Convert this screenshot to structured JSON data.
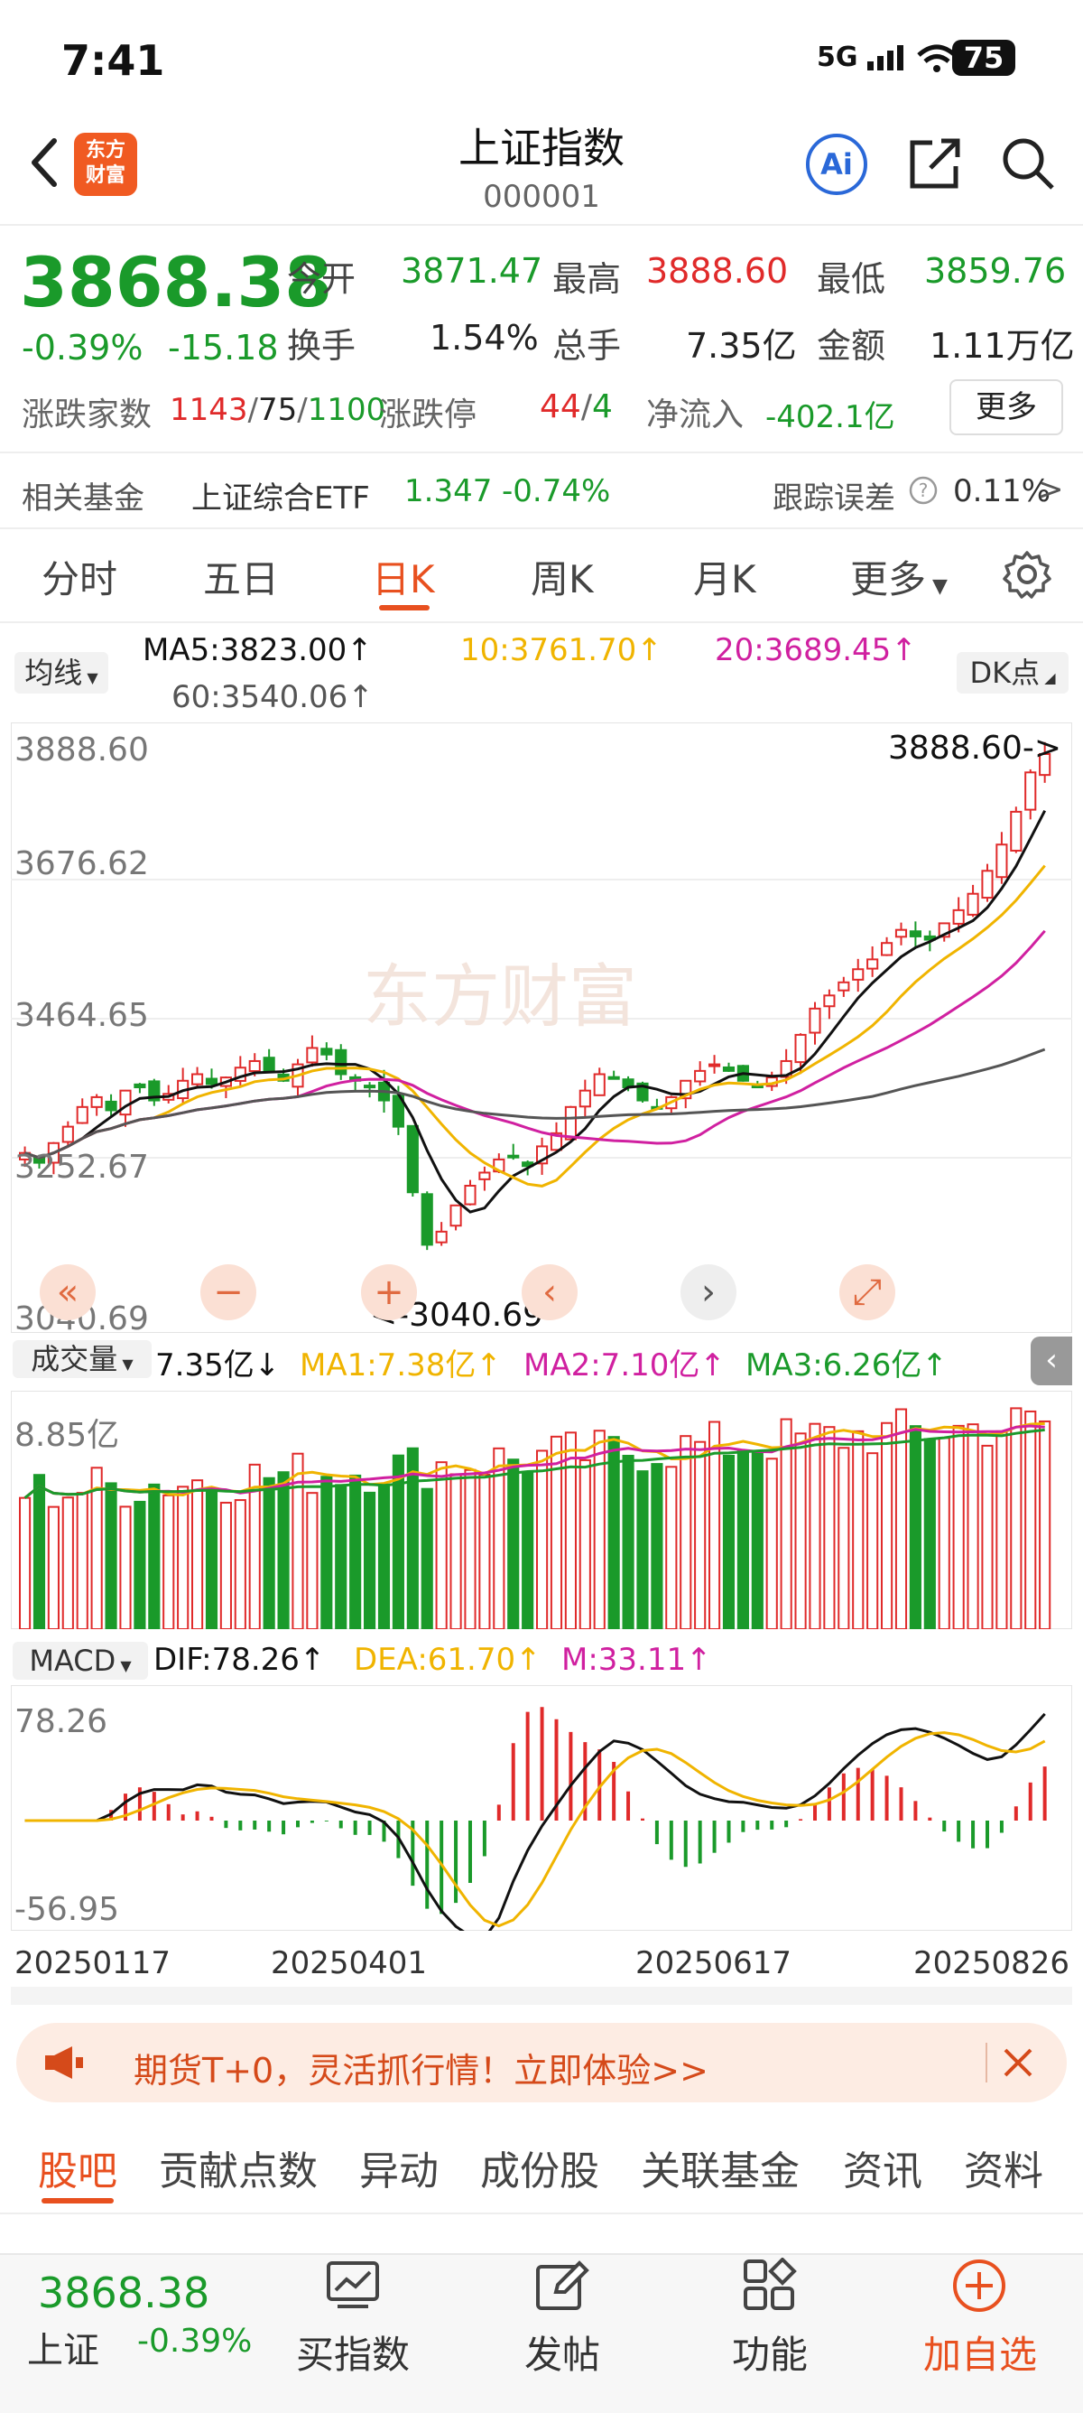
{
  "status_bar": {
    "time": "7:41",
    "network": "5G",
    "battery": "75"
  },
  "header": {
    "title": "上证指数",
    "code": "000001",
    "logo_text": "东方\n财富",
    "ai_label": "Ai"
  },
  "quote": {
    "price": "3868.38",
    "change_pct": "-0.39%",
    "change_abs": "-15.18",
    "open_label": "今开",
    "open": "3871.47",
    "high_label": "最高",
    "high": "3888.60",
    "low_label": "最低",
    "low": "3859.76",
    "turnover_label": "换手",
    "turnover": "1.54%",
    "volume_label": "总手",
    "volume": "7.35亿",
    "amount_label": "金额",
    "amount": "1.11万亿",
    "breadth_label": "涨跌家数",
    "breadth_up": "1143",
    "breadth_flat": "75",
    "breadth_down": "1100",
    "limit_label": "涨跌停",
    "limit_up": "44",
    "limit_down": "4",
    "inflow_label": "净流入",
    "inflow": "-402.1亿",
    "more_label": "更多"
  },
  "related_fund": {
    "label": "相关基金",
    "name": "上证综合ETF",
    "price": "1.347",
    "change": "-0.74%",
    "tracking_label": "跟踪误差",
    "tracking": "0.11%",
    "arrow": ">"
  },
  "period_tabs": [
    "分时",
    "五日",
    "日K",
    "周K",
    "月K",
    "更多"
  ],
  "active_period": "日K",
  "indicators": {
    "ma_select": "均线",
    "ma5": "MA5:3823.00↑",
    "ma10": "10:3761.70↑",
    "ma20": "20:3689.45↑",
    "ma60": "60:3540.06↑",
    "dk_label": "DK点"
  },
  "price_axis": {
    "top": "3888.60",
    "upper": "3676.62",
    "mid": "3464.65",
    "lower": "3252.67",
    "bottom": "3040.69"
  },
  "annotations": {
    "high": "3888.60->",
    "low": "<-3040.69"
  },
  "volume_panel": {
    "select": "成交量",
    "current": "7.35亿↓",
    "ma1": "MA1:7.38亿↑",
    "ma2": "MA2:7.10亿↑",
    "ma3": "MA3:6.26亿↑",
    "max_label": "8.85亿"
  },
  "macd_panel": {
    "select": "MACD",
    "dif": "DIF:78.26↑",
    "dea": "DEA:61.70↑",
    "m": "M:33.11↑",
    "max_label": "78.26",
    "min_label": "-56.95"
  },
  "x_dates": [
    "20250117",
    "20250401",
    "20250617",
    "20250826"
  ],
  "watermark": "东方财富",
  "banner": {
    "text": "期货T+0，灵活抓行情！立即体验>>"
  },
  "bottom_tabs": [
    "股吧",
    "贡献点数",
    "异动",
    "成份股",
    "关联基金",
    "资讯",
    "资料"
  ],
  "bottom_bar": {
    "price": "3868.38",
    "name": "上证",
    "change": "-0.39%",
    "buy_label": "买指数",
    "post_label": "发帖",
    "func_label": "功能",
    "add_label": "加自选"
  },
  "colors": {
    "up": "#e02a2a",
    "down": "#1a9a2a",
    "accent": "#e8501f",
    "ma5": "#111111",
    "ma10": "#f0b400",
    "ma20": "#d020a0",
    "ma60": "#555555"
  },
  "chart_data": {
    "type": "candlestick",
    "x_start": "20250117",
    "x_end": "20250826",
    "ylim": [
      3040.69,
      3888.6
    ],
    "close_path": [
      3260,
      3245,
      3275,
      3300,
      3330,
      3345,
      3325,
      3355,
      3360,
      3340,
      3350,
      3370,
      3380,
      3365,
      3375,
      3390,
      3400,
      3385,
      3370,
      3395,
      3420,
      3410,
      3380,
      3370,
      3360,
      3340,
      3300,
      3200,
      3120,
      3140,
      3180,
      3210,
      3230,
      3250,
      3255,
      3240,
      3270,
      3290,
      3330,
      3355,
      3380,
      3375,
      3360,
      3340,
      3330,
      3345,
      3370,
      3385,
      3395,
      3385,
      3370,
      3360,
      3375,
      3400,
      3440,
      3480,
      3500,
      3520,
      3540,
      3555,
      3580,
      3600,
      3590,
      3585,
      3610,
      3630,
      3655,
      3690,
      3730,
      3780,
      3840,
      3868
    ]
  }
}
